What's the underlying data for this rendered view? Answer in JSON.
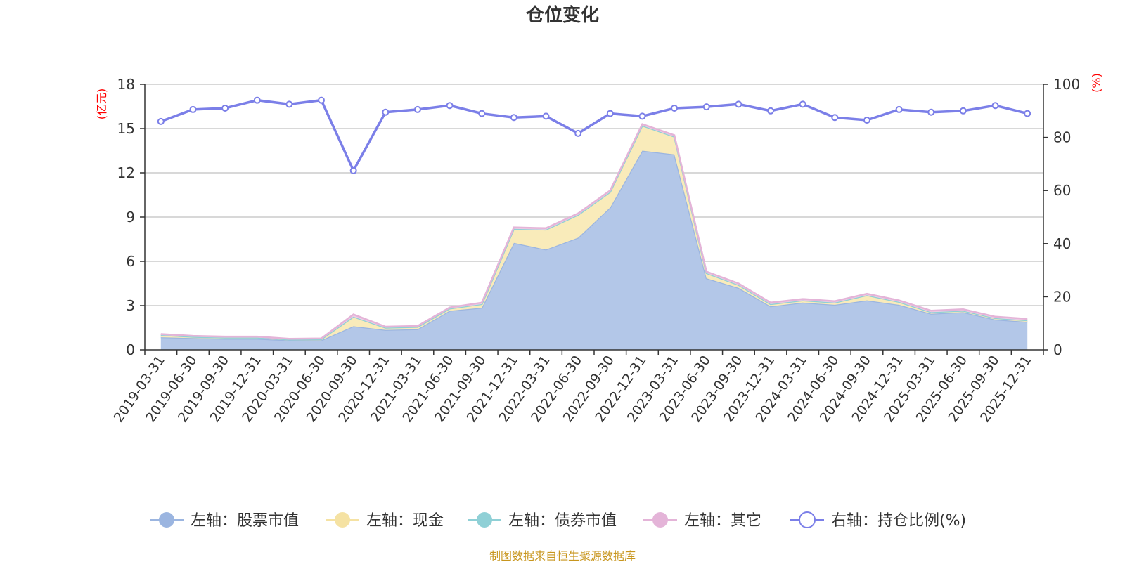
{
  "chart_data": {
    "type": "area",
    "title": "仓位变化",
    "left_axis_unit": "(亿元)",
    "right_axis_unit": "(%)",
    "ylim_left": [
      0,
      18
    ],
    "yticks_left": [
      0,
      3,
      6,
      9,
      12,
      15,
      18
    ],
    "ylim_right": [
      0,
      100
    ],
    "yticks_right": [
      0,
      20,
      40,
      60,
      80,
      100
    ],
    "grid": true,
    "stacked": true,
    "legend_position": "bottom",
    "categories": [
      "2019-03-31",
      "2019-06-30",
      "2019-09-30",
      "2019-12-31",
      "2020-03-31",
      "2020-06-30",
      "2020-09-30",
      "2020-12-31",
      "2021-03-31",
      "2021-06-30",
      "2021-09-30",
      "2021-12-31",
      "2022-03-31",
      "2022-06-30",
      "2022-09-30",
      "2022-12-31",
      "2023-03-31",
      "2023-06-30",
      "2023-09-30",
      "2023-12-31",
      "2024-03-31",
      "2024-06-30",
      "2024-09-30",
      "2024-12-31",
      "2025-03-31",
      "2025-06-30",
      "2025-09-30",
      "2025-12-31"
    ],
    "series": [
      {
        "name": "左轴：股票市值",
        "axis": "left",
        "kind": "area",
        "color": "#9bb5e0",
        "fill": "#b3c7e8",
        "values": [
          0.85,
          0.8,
          0.75,
          0.75,
          0.65,
          0.65,
          1.6,
          1.35,
          1.4,
          2.65,
          2.85,
          7.25,
          6.8,
          7.6,
          9.65,
          13.5,
          13.25,
          4.85,
          4.2,
          2.95,
          3.2,
          3.05,
          3.35,
          3.05,
          2.45,
          2.55,
          2.05,
          1.9
        ]
      },
      {
        "name": "左轴：现金",
        "axis": "left",
        "kind": "area",
        "color": "#f5e2a3",
        "fill": "#f9ebba",
        "values": [
          0.15,
          0.08,
          0.08,
          0.08,
          0.05,
          0.07,
          0.65,
          0.15,
          0.15,
          0.15,
          0.25,
          0.95,
          1.35,
          1.55,
          1.05,
          1.7,
          1.2,
          0.35,
          0.2,
          0.15,
          0.15,
          0.15,
          0.35,
          0.2,
          0.1,
          0.1,
          0.1,
          0.1
        ]
      },
      {
        "name": "左轴：债券市值",
        "axis": "left",
        "kind": "area",
        "color": "#8fd0d6",
        "fill": "#b0e0e4",
        "values": [
          0,
          0,
          0,
          0,
          0,
          0,
          0,
          0,
          0,
          0,
          0,
          0,
          0,
          0,
          0,
          0,
          0,
          0,
          0,
          0,
          0,
          0,
          0,
          0,
          0,
          0,
          0,
          0
        ]
      },
      {
        "name": "左轴：其它",
        "axis": "left",
        "kind": "area",
        "color": "#e4b4d8",
        "fill": "#efcfe6",
        "values": [
          0.07,
          0.07,
          0.07,
          0.07,
          0.05,
          0.05,
          0.15,
          0.07,
          0.07,
          0.07,
          0.1,
          0.1,
          0.1,
          0.1,
          0.1,
          0.1,
          0.1,
          0.1,
          0.1,
          0.1,
          0.1,
          0.1,
          0.1,
          0.1,
          0.1,
          0.1,
          0.1,
          0.1
        ]
      },
      {
        "name": "右轴：持仓比例(%)",
        "axis": "right",
        "kind": "line",
        "color": "#7b7fe8",
        "values": [
          86,
          90.5,
          91,
          94,
          92.5,
          94,
          67.5,
          89.5,
          90.5,
          92,
          89,
          87.5,
          88,
          81.5,
          89,
          88,
          91,
          91.5,
          92.5,
          90,
          92.5,
          87.5,
          86.5,
          90.5,
          89.5,
          90,
          92,
          89
        ]
      }
    ]
  },
  "footer": {
    "source": "制图数据来自恒生聚源数据库"
  }
}
